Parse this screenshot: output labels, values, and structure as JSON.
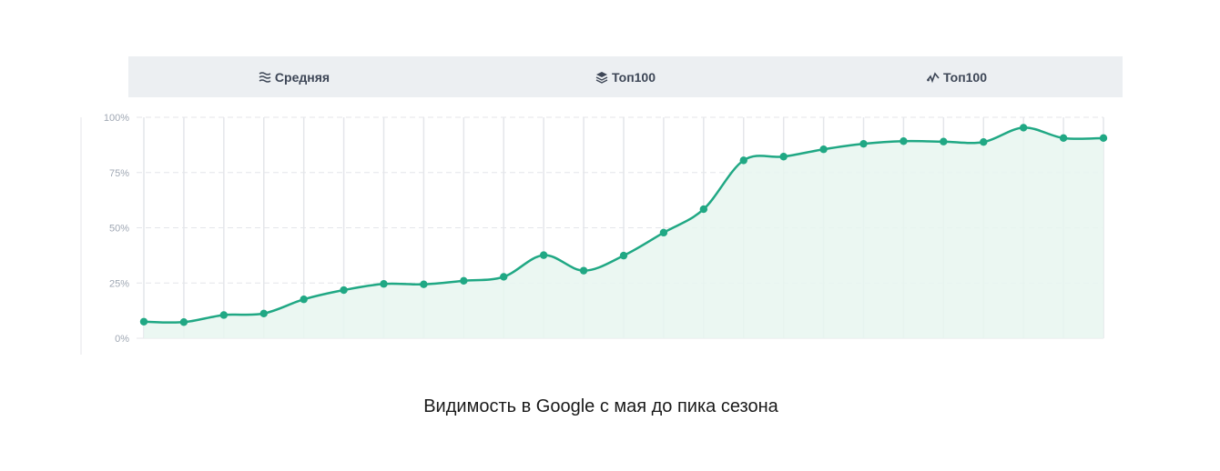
{
  "tabs": [
    {
      "label": "Средняя",
      "icon": "lines-icon"
    },
    {
      "label": "Топ100",
      "icon": "layers-icon"
    },
    {
      "label": "Топ100",
      "icon": "pulse-icon"
    }
  ],
  "caption": "Видимость в Google с мая до пика сезона",
  "colors": {
    "line": "#20a884",
    "fill": "#e8f6f0",
    "grid": "#e4e6ea",
    "tick": "#a0a8b4",
    "tabs_bg": "#eceff2"
  },
  "chart_data": {
    "type": "area",
    "title": "",
    "xlabel": "",
    "ylabel": "",
    "ylim": [
      0,
      100
    ],
    "yticks": [
      "0%",
      "25%",
      "50%",
      "75%",
      "100%"
    ],
    "grid": true,
    "series": [
      {
        "values": [
          7.5,
          7.3,
          10.5,
          11.2,
          17.6,
          21.8,
          24.6,
          24.4,
          26,
          27.8,
          37.6,
          30.6,
          37.4,
          47.8,
          58.4,
          80.5,
          82.2,
          85.5,
          88,
          89.2,
          89,
          88.8,
          95.3,
          90.6,
          90.6
        ]
      }
    ]
  }
}
